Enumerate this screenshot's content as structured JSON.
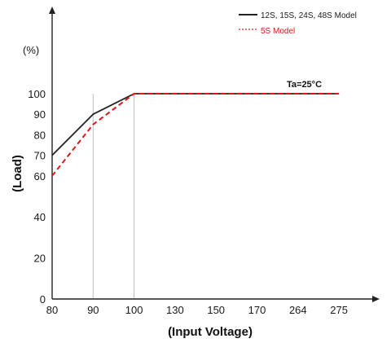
{
  "chart_data": {
    "type": "line",
    "x_categories": [
      "80",
      "90",
      "100",
      "130",
      "150",
      "170",
      "264",
      "275"
    ],
    "y_unit_label": "(%)",
    "y_ticks": [
      0,
      20,
      40,
      60,
      70,
      80,
      90,
      100
    ],
    "ylim": [
      0,
      100
    ],
    "xlabel": "(Input Voltage)",
    "ylabel": "(Load)",
    "annotation": "Ta=25°C",
    "grid": false,
    "legend_position": "top-right",
    "series": [
      {
        "name": "12S, 15S, 24S, 48S Model",
        "style": "solid",
        "color": "#222222",
        "points": [
          [
            "80",
            70
          ],
          [
            "90",
            90
          ],
          [
            "100",
            100
          ],
          [
            "275",
            100
          ]
        ]
      },
      {
        "name": "5S Model",
        "style": "dashed",
        "color": "#e0161b",
        "points": [
          [
            "80",
            60
          ],
          [
            "90",
            85
          ],
          [
            "100",
            100
          ],
          [
            "275",
            100
          ]
        ]
      }
    ]
  }
}
